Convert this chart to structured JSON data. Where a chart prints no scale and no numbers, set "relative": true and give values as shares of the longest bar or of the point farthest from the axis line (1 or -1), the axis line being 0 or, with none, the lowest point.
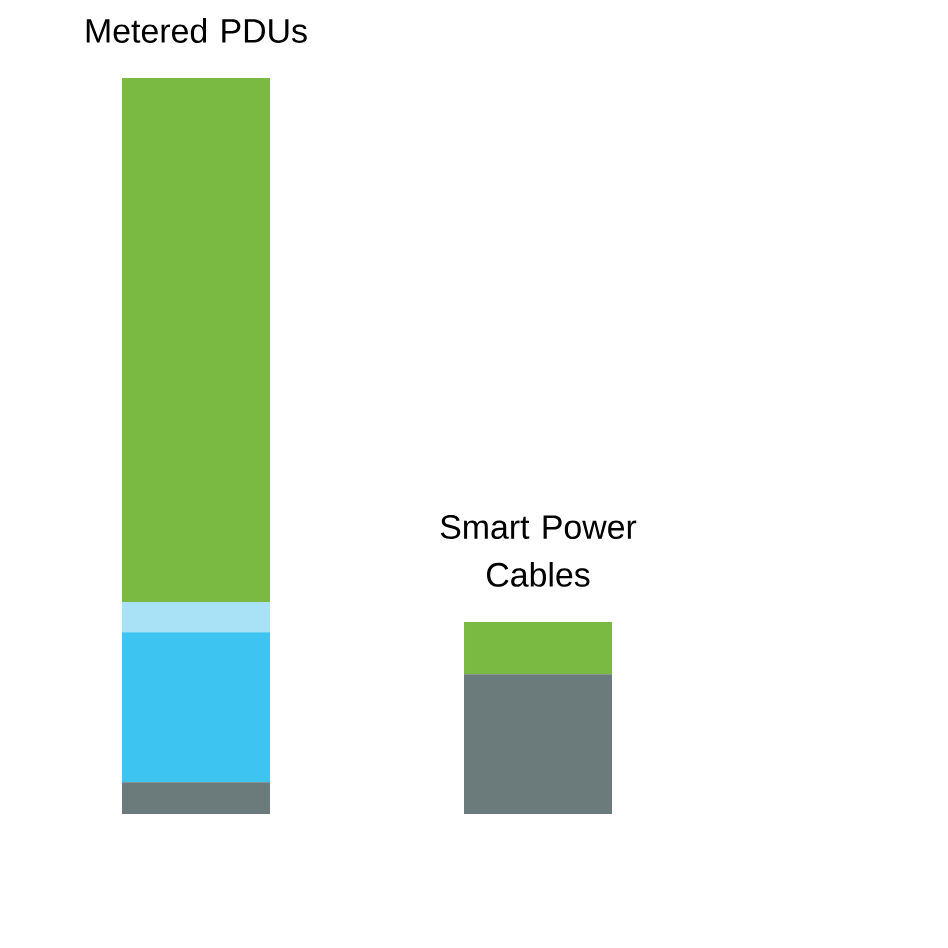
{
  "chart_data": {
    "type": "bar",
    "stacked": true,
    "relative": true,
    "categories": [
      "Metered PDUs",
      "Smart Power Cables"
    ],
    "series": [
      {
        "color": "#6b7a7a",
        "values": [
          0.043,
          0.19
        ]
      },
      {
        "color": "#3ec4f0",
        "values": [
          0.204,
          null
        ]
      },
      {
        "color": "#a9e1f6",
        "values": [
          0.041,
          null
        ]
      },
      {
        "color": "#7aba42",
        "values": [
          0.712,
          0.071
        ]
      }
    ]
  }
}
